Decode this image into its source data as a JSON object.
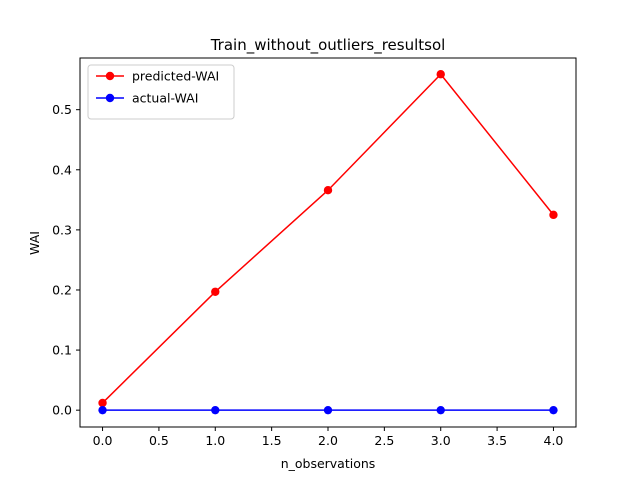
{
  "chart_data": {
    "type": "line",
    "title": "Train_without_outliers_resultsol",
    "xlabel": "n_observations",
    "ylabel": "WAI",
    "x": [
      0,
      1,
      2,
      3,
      4
    ],
    "xlim": [
      -0.2,
      4.2
    ],
    "ylim": [
      -0.028,
      0.586
    ],
    "xticks": [
      0.0,
      0.5,
      1.0,
      1.5,
      2.0,
      2.5,
      3.0,
      3.5,
      4.0
    ],
    "xtick_labels": [
      "0.0",
      "0.5",
      "1.0",
      "1.5",
      "2.0",
      "2.5",
      "3.0",
      "3.5",
      "4.0"
    ],
    "yticks": [
      0.0,
      0.1,
      0.2,
      0.3,
      0.4,
      0.5
    ],
    "ytick_labels": [
      "0.0",
      "0.1",
      "0.2",
      "0.3",
      "0.4",
      "0.5"
    ],
    "grid": false,
    "legend_position": "upper-left",
    "series": [
      {
        "name": "predicted-WAI",
        "color": "#ff0000",
        "marker": "circle",
        "values": [
          0.012,
          0.197,
          0.366,
          0.559,
          0.325
        ]
      },
      {
        "name": "actual-WAI",
        "color": "#0000ff",
        "marker": "circle",
        "values": [
          0.0,
          0.0,
          0.0,
          0.0,
          0.0
        ]
      }
    ]
  }
}
